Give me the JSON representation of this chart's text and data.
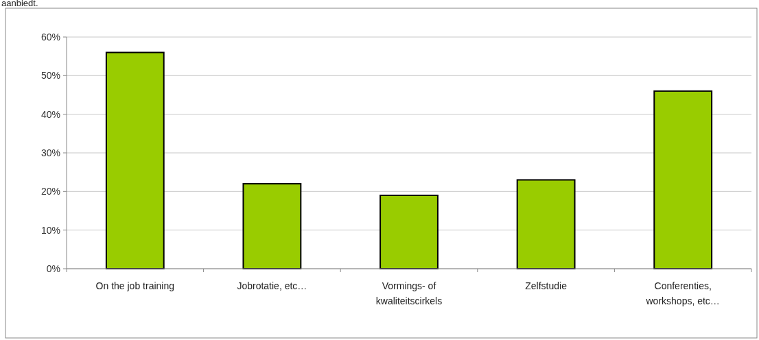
{
  "chart_data": {
    "type": "bar",
    "annotations": [
      "aanbiedt."
    ],
    "categories": [
      "On the job training",
      "Jobrotatie, etc…",
      "Vormings- of kwaliteitscirkels",
      "Zelfstudie",
      "Conferenties, workshops, etc…"
    ],
    "values": [
      0.56,
      0.22,
      0.19,
      0.23,
      0.46
    ],
    "color": "#99cc00",
    "ylim": [
      0,
      0.6
    ],
    "yticks": [
      {
        "value": 0,
        "label": "0%"
      },
      {
        "value": 0.1,
        "label": "10%"
      },
      {
        "value": 0.2,
        "label": "20%"
      },
      {
        "value": 0.3,
        "label": "30%"
      },
      {
        "value": 0.4,
        "label": "40%"
      },
      {
        "value": 0.5,
        "label": "50%"
      },
      {
        "value": 0.6,
        "label": "60%"
      }
    ],
    "grid": "y"
  }
}
